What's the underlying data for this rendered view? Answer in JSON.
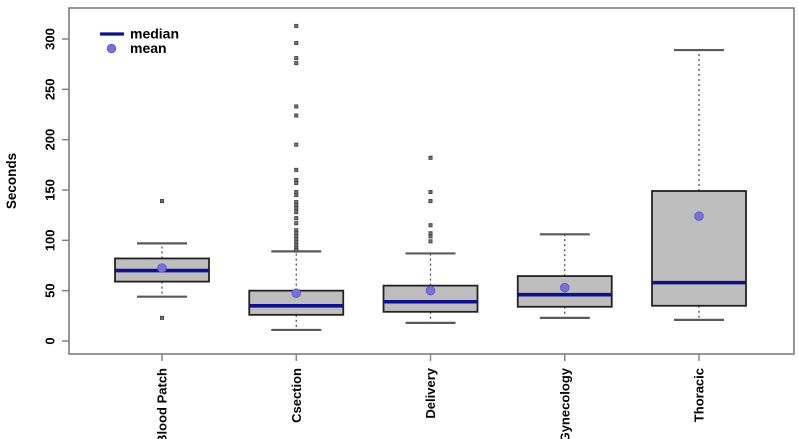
{
  "chart_data": {
    "type": "boxplot",
    "title": "",
    "xlabel": "",
    "ylabel": "Seconds",
    "ylim": [
      0,
      300
    ],
    "y_ticks": [
      0,
      50,
      100,
      150,
      200,
      250,
      300
    ],
    "grid": false,
    "legend": {
      "position": "top-left",
      "median_label": "median",
      "mean_label": "mean"
    },
    "categories": [
      {
        "label": "Blood Patch",
        "whisker_low": 44,
        "q1": 59,
        "median": 70,
        "q3": 82,
        "whisker_high": 97,
        "mean": 72.5,
        "outliers": [
          139,
          23
        ]
      },
      {
        "label": "Csection",
        "whisker_low": 11,
        "q1": 26,
        "median": 35,
        "q3": 50,
        "whisker_high": 89,
        "mean": 47.5,
        "outliers": [
          313,
          296,
          281,
          276,
          233,
          224,
          195,
          170,
          160,
          157,
          148,
          145,
          138,
          135,
          132,
          128,
          122,
          117,
          110,
          107,
          104,
          101,
          98,
          95,
          92,
          90
        ]
      },
      {
        "label": "Delivery",
        "whisker_low": 18,
        "q1": 29,
        "median": 39,
        "q3": 55,
        "whisker_high": 87,
        "mean": 50,
        "outliers": [
          182,
          148,
          139,
          115,
          107,
          104,
          99
        ]
      },
      {
        "label": "Gynecology",
        "whisker_low": 23,
        "q1": 34,
        "median": 46,
        "q3": 64.5,
        "whisker_high": 106,
        "mean": 53,
        "outliers": []
      },
      {
        "label": "Thoracic",
        "whisker_low": 21,
        "q1": 35,
        "median": 58,
        "q3": 149,
        "whisker_high": 289,
        "mean": 124,
        "outliers": []
      }
    ],
    "colors": {
      "median_line": "#10108c",
      "mean_dot": "#7b6fd8",
      "mean_dot_edge": "#6a5cc8",
      "box_fill": "#bebebe",
      "box_border": "#222222",
      "whisker_dash": "#444444",
      "whisker_cap": "#5a5a5a",
      "outlier": "#767676",
      "outlier_edge": "#3a3a3a",
      "axis": "#7d7d7d",
      "text": "#000000",
      "background": "#ffffff"
    }
  }
}
